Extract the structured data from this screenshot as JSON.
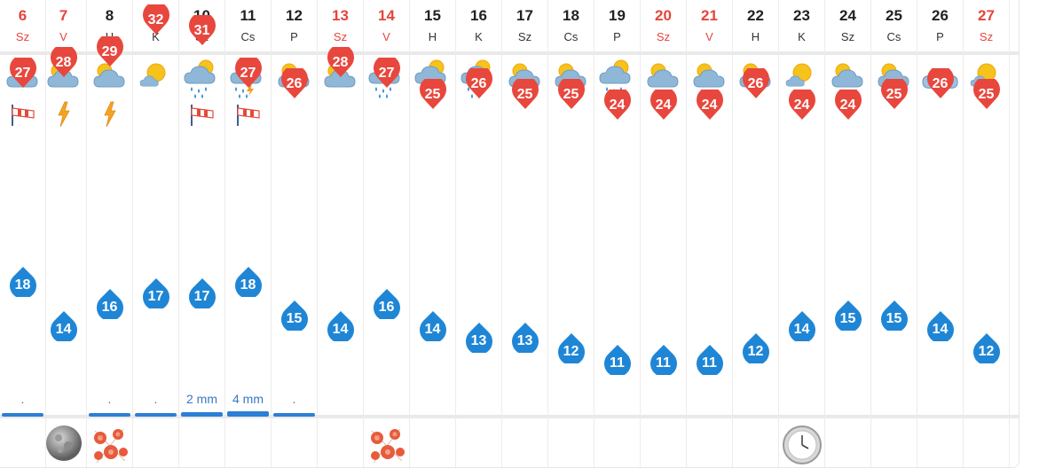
{
  "colors": {
    "weekend": "#e5443b",
    "high_pin": "#e8473d",
    "low_pin": "#1f86d6",
    "rain_bar": "#2b7fd4"
  },
  "days": [
    {
      "day": "6",
      "dow": "Sz",
      "weekend": true,
      "weather": "cloudy-sun-icon",
      "extra": "wind-icon",
      "high": "27",
      "low": "18",
      "rain": ".",
      "rain_level": 0.3,
      "bottom": ""
    },
    {
      "day": "7",
      "dow": "V",
      "weekend": true,
      "weather": "cloudy-sun-icon",
      "extra": "lightning-icon",
      "high": "28",
      "low": "14",
      "rain": "",
      "rain_level": 0,
      "bottom": "full-moon-icon"
    },
    {
      "day": "8",
      "dow": "H",
      "weekend": false,
      "weather": "cloudy-sun-icon",
      "extra": "lightning-icon",
      "high": "29",
      "low": "16",
      "rain": ".",
      "rain_level": 0.3,
      "bottom": "flower-icon"
    },
    {
      "day": "9",
      "dow": "K",
      "weekend": false,
      "weather": "sun-behind-cloud-icon",
      "extra": "",
      "high": "32",
      "low": "17",
      "rain": ".",
      "rain_level": 0.3,
      "bottom": ""
    },
    {
      "day": "10",
      "dow": "Sz",
      "weekend": false,
      "weather": "rain-sun-icon",
      "extra": "wind-icon",
      "high": "31",
      "low": "17",
      "rain": "2 mm",
      "rain_level": 0.5,
      "bottom": ""
    },
    {
      "day": "11",
      "dow": "Cs",
      "weekend": false,
      "weather": "thunder-rain-icon",
      "extra": "wind-icon",
      "high": "27",
      "low": "18",
      "rain": "4 mm",
      "rain_level": 1,
      "bottom": ""
    },
    {
      "day": "12",
      "dow": "P",
      "weekend": false,
      "weather": "cloudy-sun-icon",
      "extra": "",
      "high": "26",
      "low": "15",
      "rain": ".",
      "rain_level": 0.3,
      "bottom": ""
    },
    {
      "day": "13",
      "dow": "Sz",
      "weekend": true,
      "weather": "cloudy-sun-icon",
      "extra": "",
      "high": "28",
      "low": "14",
      "rain": "",
      "rain_level": 0,
      "bottom": ""
    },
    {
      "day": "14",
      "dow": "V",
      "weekend": true,
      "weather": "rain-sun-icon",
      "extra": "",
      "high": "27",
      "low": "16",
      "rain": "",
      "rain_level": 0,
      "bottom": "flower-icon"
    },
    {
      "day": "15",
      "dow": "H",
      "weekend": false,
      "weather": "rain-sun-icon",
      "extra": "",
      "high": "25",
      "low": "14",
      "rain": "",
      "rain_level": 0,
      "bottom": ""
    },
    {
      "day": "16",
      "dow": "K",
      "weekend": false,
      "weather": "rain-sun-icon",
      "extra": "",
      "high": "26",
      "low": "13",
      "rain": "",
      "rain_level": 0,
      "bottom": ""
    },
    {
      "day": "17",
      "dow": "Sz",
      "weekend": false,
      "weather": "cloudy-sun-icon",
      "extra": "",
      "high": "25",
      "low": "13",
      "rain": "",
      "rain_level": 0,
      "bottom": ""
    },
    {
      "day": "18",
      "dow": "Cs",
      "weekend": false,
      "weather": "cloudy-sun-icon",
      "extra": "",
      "high": "25",
      "low": "12",
      "rain": "",
      "rain_level": 0,
      "bottom": ""
    },
    {
      "day": "19",
      "dow": "P",
      "weekend": false,
      "weather": "rain-sun-icon",
      "extra": "",
      "high": "24",
      "low": "11",
      "rain": "",
      "rain_level": 0,
      "bottom": ""
    },
    {
      "day": "20",
      "dow": "Sz",
      "weekend": true,
      "weather": "cloudy-sun-icon",
      "extra": "",
      "high": "24",
      "low": "11",
      "rain": "",
      "rain_level": 0,
      "bottom": ""
    },
    {
      "day": "21",
      "dow": "V",
      "weekend": true,
      "weather": "cloudy-sun-icon",
      "extra": "",
      "high": "24",
      "low": "11",
      "rain": "",
      "rain_level": 0,
      "bottom": ""
    },
    {
      "day": "22",
      "dow": "H",
      "weekend": false,
      "weather": "cloudy-sun-icon",
      "extra": "",
      "high": "26",
      "low": "12",
      "rain": "",
      "rain_level": 0,
      "bottom": ""
    },
    {
      "day": "23",
      "dow": "K",
      "weekend": false,
      "weather": "sun-behind-cloud-icon",
      "extra": "",
      "high": "24",
      "low": "14",
      "rain": "",
      "rain_level": 0,
      "bottom": "clock-icon"
    },
    {
      "day": "24",
      "dow": "Sz",
      "weekend": false,
      "weather": "cloudy-sun-icon",
      "extra": "",
      "high": "24",
      "low": "15",
      "rain": "",
      "rain_level": 0,
      "bottom": ""
    },
    {
      "day": "25",
      "dow": "Cs",
      "weekend": false,
      "weather": "cloudy-sun-icon",
      "extra": "",
      "high": "25",
      "low": "15",
      "rain": "",
      "rain_level": 0,
      "bottom": ""
    },
    {
      "day": "26",
      "dow": "P",
      "weekend": false,
      "weather": "cloud-icon",
      "extra": "",
      "high": "26",
      "low": "14",
      "rain": "",
      "rain_level": 0,
      "bottom": ""
    },
    {
      "day": "27",
      "dow": "Sz",
      "weekend": true,
      "weather": "sun-behind-cloud-icon",
      "extra": "",
      "high": "25",
      "low": "12",
      "rain": "",
      "rain_level": 0,
      "bottom": ""
    }
  ]
}
